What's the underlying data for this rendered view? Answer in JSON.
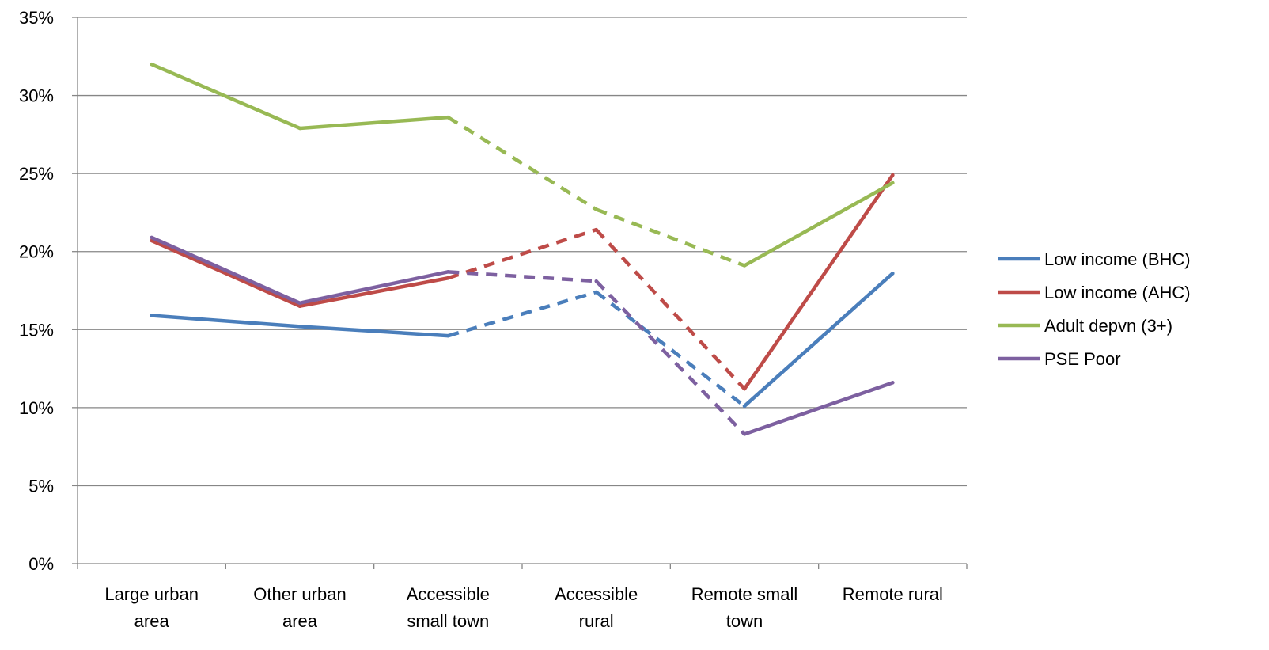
{
  "chart_data": {
    "type": "line",
    "title": "",
    "xlabel": "",
    "ylabel": "",
    "categories": [
      [
        "Large urban",
        "area"
      ],
      [
        "Other urban",
        "area"
      ],
      [
        "Accessible",
        "small town"
      ],
      [
        "Accessible",
        "rural"
      ],
      [
        "Remote small",
        "town"
      ],
      [
        "Remote rural"
      ]
    ],
    "ylim": [
      0,
      35
    ],
    "yticks": [
      0,
      5,
      10,
      15,
      20,
      25,
      30,
      35
    ],
    "ytick_labels": [
      "0%",
      "5%",
      "10%",
      "15%",
      "20%",
      "25%",
      "30%",
      "35%"
    ],
    "grid": "horizontal",
    "legend_position": "right",
    "dashed_segments_between_categories": [
      [
        2,
        3
      ],
      [
        3,
        4
      ]
    ],
    "series": [
      {
        "name": "Low income (BHC)",
        "color": "#4a7ebb",
        "values": [
          15.9,
          15.2,
          14.6,
          17.4,
          10.1,
          18.6
        ]
      },
      {
        "name": "Low income (AHC)",
        "color": "#be4b48",
        "values": [
          20.7,
          16.5,
          18.3,
          21.4,
          11.2,
          24.9
        ]
      },
      {
        "name": "Adult depvn (3+)",
        "color": "#98b954",
        "values": [
          32.0,
          27.9,
          28.6,
          22.7,
          19.1,
          24.4
        ]
      },
      {
        "name": "PSE Poor",
        "color": "#7d60a0",
        "values": [
          20.9,
          16.7,
          18.7,
          18.1,
          8.3,
          11.6
        ]
      }
    ]
  }
}
